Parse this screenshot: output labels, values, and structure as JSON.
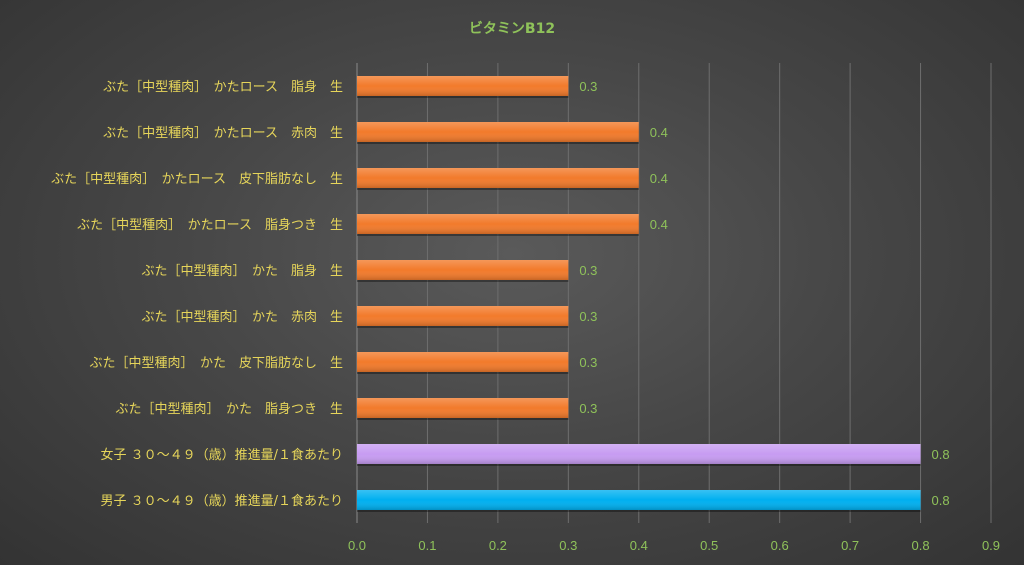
{
  "chart_data": {
    "type": "bar",
    "orientation": "horizontal",
    "title": "ビタミンB12",
    "xlabel": "",
    "ylabel": "",
    "xlim": [
      0,
      0.9
    ],
    "x_ticks": [
      "0.0",
      "0.1",
      "0.2",
      "0.3",
      "0.4",
      "0.5",
      "0.6",
      "0.7",
      "0.8",
      "0.9"
    ],
    "grid": "vertical",
    "data_labels": true,
    "categories": [
      "ぶた［中型種肉］　かたロース　脂身　生",
      "ぶた［中型種肉］　かたロース　赤肉　生",
      "ぶた［中型種肉］　かたロース　皮下脂肪なし　生",
      "ぶた［中型種肉］　かたロース　脂身つき　生",
      "ぶた［中型種肉］　かた　脂身　生",
      "ぶた［中型種肉］　かた　赤肉　生",
      "ぶた［中型種肉］　かた　皮下脂肪なし　生",
      "ぶた［中型種肉］　かた　脂身つき　生",
      "女子 ３０～４９（歳）推進量/１食あたり",
      "男子 ３０～４９（歳）推進量/１食あたり"
    ],
    "values": [
      0.3,
      0.4,
      0.4,
      0.4,
      0.3,
      0.3,
      0.3,
      0.3,
      0.8,
      0.8
    ],
    "value_labels": [
      "0.3",
      "0.4",
      "0.4",
      "0.4",
      "0.3",
      "0.3",
      "0.3",
      "0.3",
      "0.8",
      "0.8"
    ],
    "colors": [
      "#f27a2b",
      "#f27a2b",
      "#f27a2b",
      "#f27a2b",
      "#f27a2b",
      "#f27a2b",
      "#f27a2b",
      "#f27a2b",
      "#c79cf2",
      "#00b0f0"
    ]
  }
}
